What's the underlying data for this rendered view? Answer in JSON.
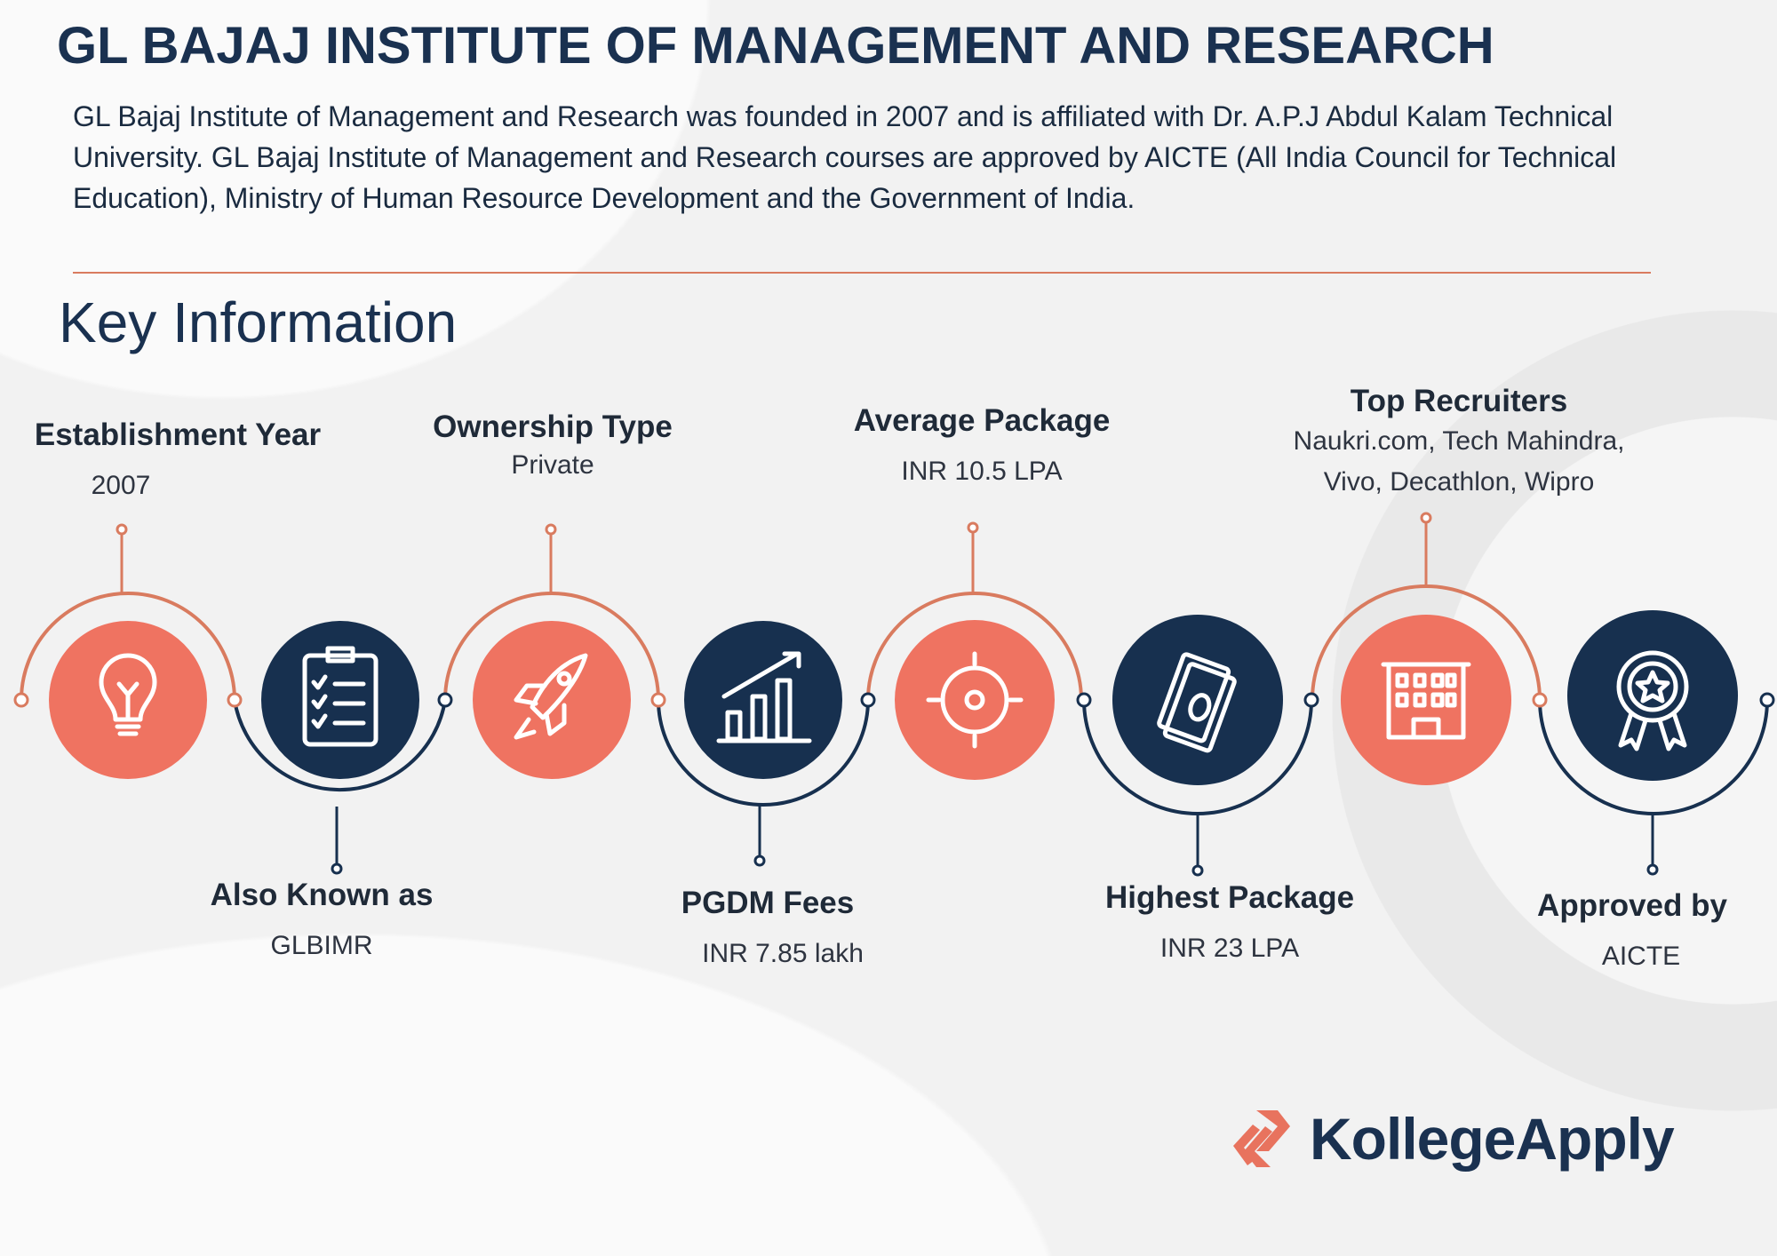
{
  "header": {
    "title": "GL BAJAJ INSTITUTE OF MANAGEMENT AND RESEARCH",
    "intro": "GL Bajaj Institute of Management and Research was founded in 2007 and is affiliated with Dr. A.P.J Abdul Kalam Technical University. GL Bajaj Institute of Management and Research courses are approved by AICTE (All India Council for Technical Education), Ministry of Human Resource Development and the Government of India."
  },
  "section_title": "Key Information",
  "colors": {
    "accent": "#ef7361",
    "navy": "#17304f",
    "line_orange": "#d97b5f"
  },
  "items": [
    {
      "label": "Establishment Year",
      "value": "2007",
      "icon": "lightbulb-icon"
    },
    {
      "label": "Also Known as",
      "value": "GLBIMR",
      "icon": "clipboard-checklist-icon"
    },
    {
      "label": "Ownership Type",
      "value": "Private",
      "icon": "rocket-icon"
    },
    {
      "label": "PGDM Fees",
      "value": "INR 7.85 lakh",
      "icon": "growth-chart-icon"
    },
    {
      "label": "Average Package",
      "value": "INR 10.5 LPA",
      "icon": "target-icon"
    },
    {
      "label": "Highest Package",
      "value": "INR 23 LPA",
      "icon": "money-icon"
    },
    {
      "label": "Top Recruiters",
      "value_lines": [
        "Naukri.com, Tech Mahindra,",
        "Vivo, Decathlon, Wipro"
      ],
      "icon": "building-icon"
    },
    {
      "label": "Approved by",
      "value": "AICTE",
      "icon": "award-badge-icon"
    }
  ],
  "brand": {
    "name": "KollegeApply"
  }
}
